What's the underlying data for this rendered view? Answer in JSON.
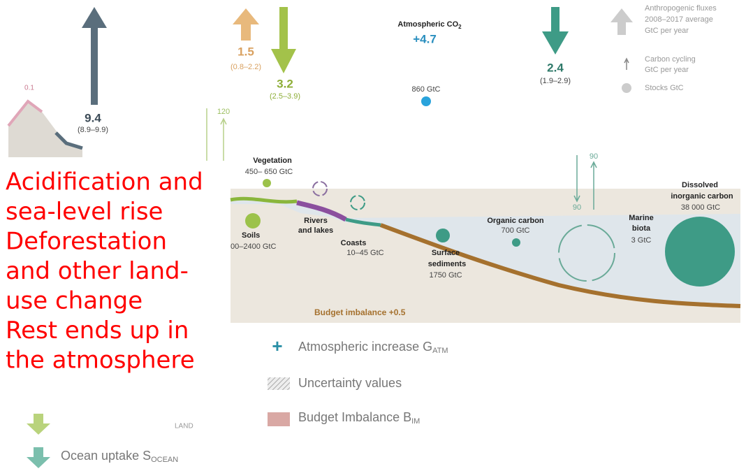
{
  "fluxes": {
    "fire_peak": "0.1",
    "fossil": {
      "value": "9.4",
      "range": "(8.9–9.9)"
    },
    "land_use": {
      "value": "1.5",
      "range": "(0.8–2.2)"
    },
    "land_sink": {
      "value": "3.2",
      "range": "(2.5–3.9)"
    },
    "land_cycle": "120",
    "atmosphere": {
      "label": "Atmospheric CO",
      "label_sub": "2",
      "value": "+4.7",
      "stock": "860 GtC"
    },
    "ocean_sink": {
      "value": "2.4",
      "range": "(1.9–2.9)"
    },
    "ocean_cycle": [
      "90",
      "90"
    ]
  },
  "legend_top": {
    "anthropogenic": [
      "Anthropogenic fluxes",
      "2008–2017 average",
      "GtC per year"
    ],
    "cycling": [
      "Carbon cycling",
      "GtC per year"
    ],
    "stocks": "Stocks GtC"
  },
  "stocks": {
    "vegetation": [
      "Vegetation",
      "450– 650 GtC"
    ],
    "soils": [
      "Soils",
      "00–2400 GtC"
    ],
    "rivers": [
      "Rivers",
      "and lakes"
    ],
    "coasts": [
      "Coasts",
      "10–45 GtC"
    ],
    "sediments": [
      "Surface",
      "sediments",
      "1750 GtC"
    ],
    "organic": [
      "Organic carbon",
      "700 GtC"
    ],
    "biota": [
      "Marine",
      "biota",
      "3 GtC"
    ],
    "dissolved": [
      "Dissolved",
      "inorganic carbon",
      "38 000 GtC"
    ]
  },
  "budget_imbalance": "Budget imbalance +0.5",
  "overlay": {
    "lines": [
      "Acidification and",
      "sea-level rise",
      "Deforestation",
      "and other land-",
      "use change",
      "Rest ends up in",
      "the atmosphere"
    ]
  },
  "legend_bottom": {
    "plus": "+",
    "atm": {
      "label": "Atmospheric increase G",
      "sub": "ATM"
    },
    "uncertainty": "Uncertainty values",
    "imbalance": {
      "label": "Budget Imbalance B",
      "sub": "IM"
    },
    "land_sub": "LAND",
    "ocean": {
      "label": "Ocean uptake S",
      "sub": "OCEAN"
    }
  }
}
